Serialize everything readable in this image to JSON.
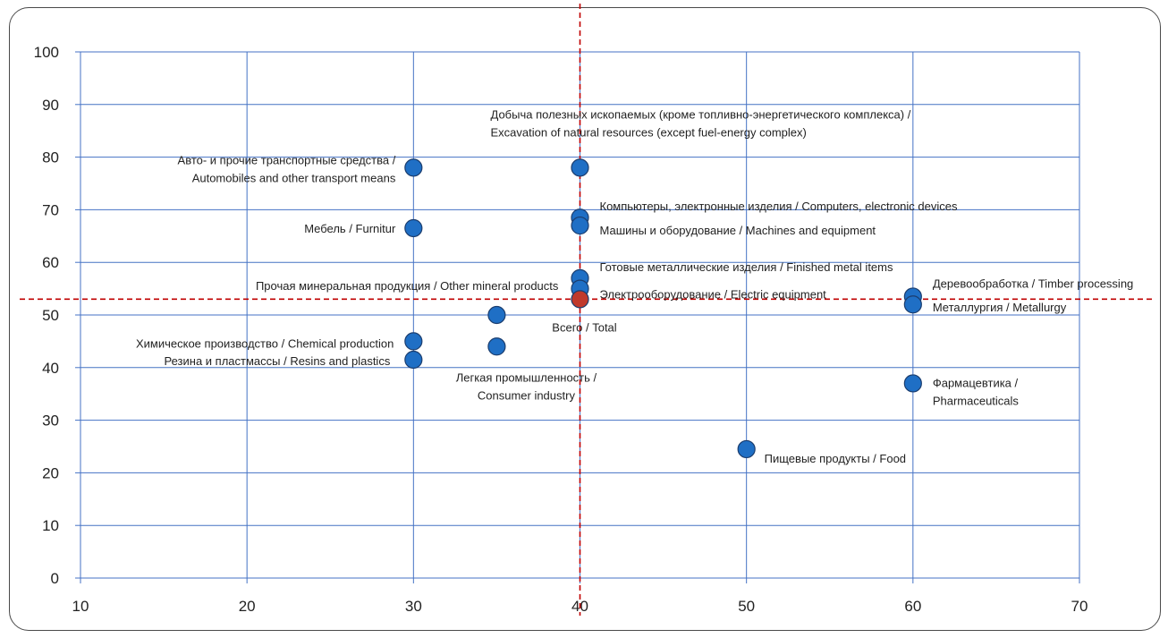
{
  "chart_data": {
    "type": "scatter",
    "title": "",
    "xlabel": "",
    "ylabel": "",
    "xlim": [
      10,
      70
    ],
    "ylim": [
      0,
      100
    ],
    "xticks": [
      "10",
      "20",
      "30",
      "40",
      "50",
      "60",
      "70"
    ],
    "yticks": [
      "0",
      "10",
      "20",
      "30",
      "40",
      "50",
      "60",
      "70",
      "80",
      "90",
      "100"
    ],
    "grid": true,
    "reference_lines": {
      "x": 40,
      "y": 53,
      "color": "#c00000",
      "style": "dashed"
    },
    "colors": {
      "point": "#1f6fc5",
      "total_point": "#c0392b",
      "grid": "#4472c4"
    },
    "points": [
      {
        "x": 30,
        "y": 78,
        "label_lines": [
          "Авто- и прочие транспортные средства /",
          "Automobiles and other transport means"
        ]
      },
      {
        "x": 40,
        "y": 78,
        "label_lines": [
          "Добыча полезных ископаемых (кроме топливно-энергетического комплекса) /",
          "Excavation of natural resources (except fuel-energy complex)"
        ]
      },
      {
        "x": 40,
        "y": 68.5,
        "label_lines": [
          "Компьютеры, электронные изделия / Computers, electronic devices"
        ]
      },
      {
        "x": 40,
        "y": 67,
        "label_lines": [
          "Машины и оборудование / Machines and equipment"
        ]
      },
      {
        "x": 30,
        "y": 66.5,
        "label_lines": [
          "Мебель / Furnitur"
        ]
      },
      {
        "x": 40,
        "y": 57,
        "label_lines": [
          "Готовые металлические изделия / Finished metal items"
        ]
      },
      {
        "x": 40,
        "y": 55,
        "label_lines": [
          "Электрооборудование / Electric equipment"
        ]
      },
      {
        "x": 40,
        "y": 53,
        "total": true,
        "label_lines": [
          "Всего / Total"
        ]
      },
      {
        "x": 35,
        "y": 50,
        "label_lines": [
          "Прочая минеральная продукция / Other mineral products"
        ]
      },
      {
        "x": 60,
        "y": 53.5,
        "label_lines": [
          "Деревообработка / Timber processing"
        ]
      },
      {
        "x": 60,
        "y": 52,
        "label_lines": [
          "Металлургия / Metallurgy"
        ]
      },
      {
        "x": 30,
        "y": 45,
        "label_lines": [
          "Химическое производство / Chemical production"
        ]
      },
      {
        "x": 35,
        "y": 44,
        "label_lines": [
          "Легкая промышленность /",
          "Consumer industry"
        ]
      },
      {
        "x": 30,
        "y": 41.5,
        "label_lines": [
          "Резина и пластмассы / Resins and plastics"
        ]
      },
      {
        "x": 60,
        "y": 37,
        "label_lines": [
          "Фармацевтика /",
          "Pharmaceuticals"
        ]
      },
      {
        "x": 50,
        "y": 24.5,
        "label_lines": [
          "Пищевые продукты / Food"
        ]
      }
    ]
  }
}
